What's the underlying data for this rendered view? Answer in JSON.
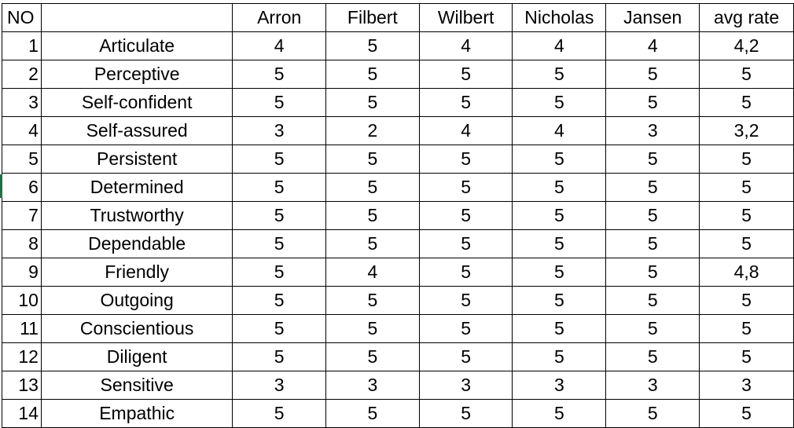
{
  "table": {
    "headers": [
      "NO",
      "",
      "Arron",
      "Filbert",
      "Wilbert",
      "Nicholas",
      "Jansen",
      "avg rate"
    ],
    "rows": [
      [
        "1",
        "Articulate",
        "4",
        "5",
        "4",
        "4",
        "4",
        "4,2"
      ],
      [
        "2",
        "Perceptive",
        "5",
        "5",
        "5",
        "5",
        "5",
        "5"
      ],
      [
        "3",
        "Self-confident",
        "5",
        "5",
        "5",
        "5",
        "5",
        "5"
      ],
      [
        "4",
        "Self-assured",
        "3",
        "2",
        "4",
        "4",
        "3",
        "3,2"
      ],
      [
        "5",
        "Persistent",
        "5",
        "5",
        "5",
        "5",
        "5",
        "5"
      ],
      [
        "6",
        "Determined",
        "5",
        "5",
        "5",
        "5",
        "5",
        "5"
      ],
      [
        "7",
        "Trustworthy",
        "5",
        "5",
        "5",
        "5",
        "5",
        "5"
      ],
      [
        "8",
        "Dependable",
        "5",
        "5",
        "5",
        "5",
        "5",
        "5"
      ],
      [
        "9",
        "Friendly",
        "5",
        "4",
        "5",
        "5",
        "5",
        "4,8"
      ],
      [
        "10",
        "Outgoing",
        "5",
        "5",
        "5",
        "5",
        "5",
        "5"
      ],
      [
        "11",
        "Conscientious",
        "5",
        "5",
        "5",
        "5",
        "5",
        "5"
      ],
      [
        "12",
        "Diligent",
        "5",
        "5",
        "5",
        "5",
        "5",
        "5"
      ],
      [
        "13",
        "Sensitive",
        "3",
        "3",
        "3",
        "3",
        "3",
        "3"
      ],
      [
        "14",
        "Empathic",
        "5",
        "5",
        "5",
        "5",
        "5",
        "5"
      ]
    ]
  }
}
